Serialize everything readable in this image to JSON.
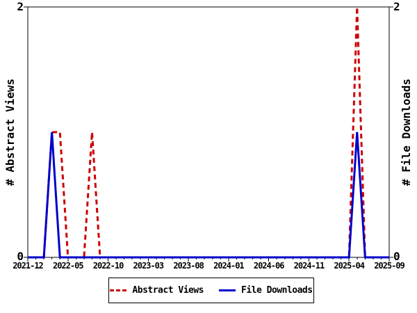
{
  "chart": {
    "y_left_label": "# Abstract Views",
    "y_right_label": "# File Downloads",
    "y_tick_top": "2",
    "y_tick_bottom": "0",
    "colors": {
      "abstract_views": "#cc0000",
      "file_downloads": "#0000cc",
      "axis": "#000000",
      "background": "#ffffff"
    }
  },
  "legend": {
    "items": [
      {
        "label": "Abstract Views",
        "color": "#cc0000",
        "dashed": true
      },
      {
        "label": "File Downloads",
        "color": "#0000cc",
        "dashed": false
      }
    ]
  },
  "chart_data": {
    "type": "line",
    "title": "",
    "ylabel_left": "# Abstract Views",
    "ylabel_right": "# File Downloads",
    "ylim": [
      0,
      2
    ],
    "y_tick_labels": [
      "0",
      "2"
    ],
    "grid": false,
    "legend_position": "bottom-center-boxed",
    "x": [
      "2021-12",
      "2022-01",
      "2022-02",
      "2022-03",
      "2022-04",
      "2022-05",
      "2022-06",
      "2022-07",
      "2022-08",
      "2022-09",
      "2022-10",
      "2022-11",
      "2022-12",
      "2023-01",
      "2023-02",
      "2023-03",
      "2023-04",
      "2023-05",
      "2023-06",
      "2023-07",
      "2023-08",
      "2023-09",
      "2023-10",
      "2023-11",
      "2023-12",
      "2024-01",
      "2024-02",
      "2024-03",
      "2024-04",
      "2024-05",
      "2024-06",
      "2024-07",
      "2024-08",
      "2024-09",
      "2024-10",
      "2024-11",
      "2024-12",
      "2025-01",
      "2025-02",
      "2025-03",
      "2025-04",
      "2025-05",
      "2025-06",
      "2025-07",
      "2025-08",
      "2025-09"
    ],
    "x_tick_labels": [
      "2021-12",
      "2022-05",
      "2022-10",
      "2023-03",
      "2023-08",
      "2024-01",
      "2024-06",
      "2024-11",
      "2025-04",
      "2025-09"
    ],
    "series": [
      {
        "name": "Abstract Views",
        "color": "#cc0000",
        "style": "dashed",
        "values": [
          0,
          0,
          0,
          1,
          1,
          0,
          0,
          0,
          1,
          0,
          0,
          0,
          0,
          0,
          0,
          0,
          0,
          0,
          0,
          0,
          0,
          0,
          0,
          0,
          0,
          0,
          0,
          0,
          0,
          0,
          0,
          0,
          0,
          0,
          0,
          0,
          0,
          0,
          0,
          0,
          0,
          2,
          0,
          0,
          0,
          0
        ]
      },
      {
        "name": "File Downloads",
        "color": "#0000cc",
        "style": "solid",
        "values": [
          0,
          0,
          0,
          1,
          0,
          0,
          0,
          0,
          0,
          0,
          0,
          0,
          0,
          0,
          0,
          0,
          0,
          0,
          0,
          0,
          0,
          0,
          0,
          0,
          0,
          0,
          0,
          0,
          0,
          0,
          0,
          0,
          0,
          0,
          0,
          0,
          0,
          0,
          0,
          0,
          0,
          1,
          0,
          0,
          0,
          0
        ]
      }
    ]
  }
}
